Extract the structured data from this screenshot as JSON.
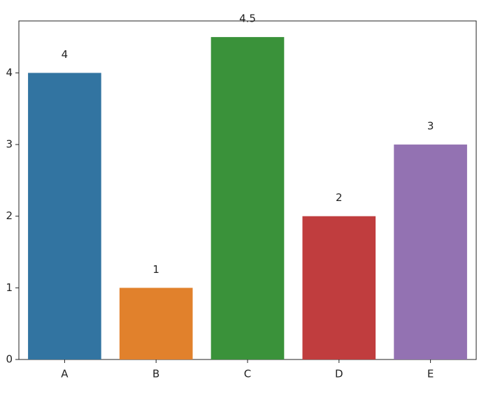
{
  "chart_data": {
    "type": "bar",
    "categories": [
      "A",
      "B",
      "C",
      "D",
      "E"
    ],
    "values": [
      4,
      1,
      4.5,
      2,
      3
    ],
    "colors": [
      "#3274a1",
      "#e1812c",
      "#3a923a",
      "#c03d3e",
      "#9372b2"
    ],
    "ylim": [
      0,
      4.725
    ],
    "yticks": [
      0,
      1,
      2,
      3,
      4
    ]
  }
}
